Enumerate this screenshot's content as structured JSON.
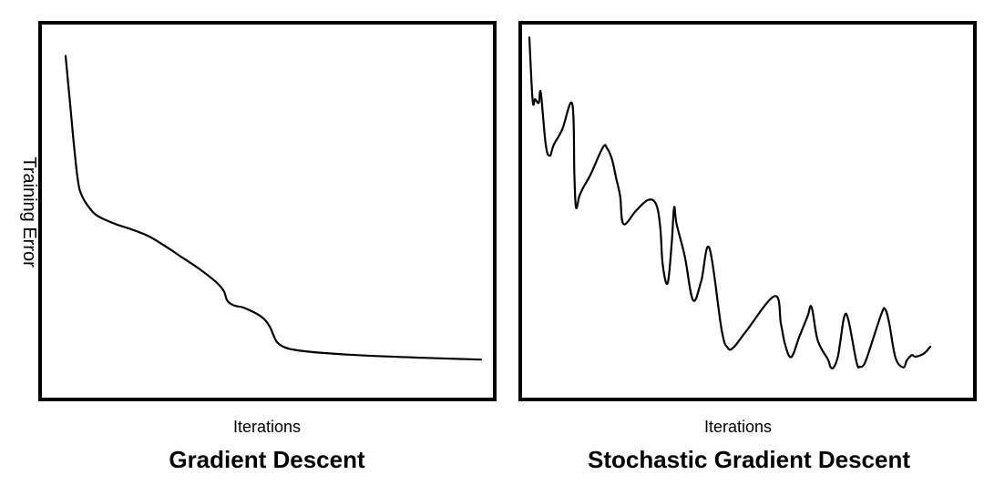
{
  "chart_data": [
    {
      "type": "line",
      "title": "Gradient Descent",
      "xlabel": "Iterations",
      "ylabel": "Training Error",
      "grid": false,
      "xlim": [
        0,
        100
      ],
      "ylim": [
        0,
        100
      ],
      "series": [
        {
          "x": [
            0,
            1,
            2,
            3,
            4,
            6,
            8,
            12,
            16,
            20,
            24,
            28,
            32,
            36,
            38,
            38.8,
            39.6,
            41,
            43,
            47,
            49,
            50,
            51,
            53,
            56,
            62,
            72,
            86,
            100
          ],
          "y": [
            92,
            80,
            68,
            58,
            54,
            50.5,
            48.5,
            46.5,
            45,
            43.2,
            40.5,
            37.5,
            34.5,
            31,
            28.5,
            26,
            25,
            24.3,
            23.8,
            21.5,
            19,
            16.5,
            14.4,
            13,
            12.3,
            11.6,
            10.9,
            10.3,
            9.8
          ]
        }
      ]
    },
    {
      "type": "line",
      "title": "Stochastic Gradient Descent",
      "xlabel": "Iterations",
      "ylabel": "",
      "grid": false,
      "xlim": [
        0,
        100
      ],
      "ylim": [
        0,
        100
      ],
      "series": [
        {
          "x": [
            0,
            0.8,
            1.4,
            2.3,
            2.8,
            4,
            5,
            6,
            8,
            10.5,
            11,
            11.4,
            12.2,
            13,
            15,
            18,
            19,
            20.2,
            21.2,
            22.2,
            23,
            26,
            29,
            31,
            32,
            32.6,
            33.8,
            34.8,
            35.4,
            36,
            38,
            40,
            42,
            44,
            47,
            48.5,
            50,
            53,
            60,
            61.5,
            62.5,
            64,
            66,
            68,
            69,
            70.5,
            73,
            73.6,
            74.4,
            75.4,
            76,
            77,
            78,
            80,
            80.8,
            81.6,
            82.6,
            86,
            87,
            88,
            89.5,
            91.4,
            92.3,
            93.5,
            94.4,
            96.5,
            98
          ],
          "y": [
            97,
            80,
            80.3,
            79.3,
            82,
            68,
            65,
            68,
            72,
            79,
            60,
            51,
            54,
            56,
            60,
            67.3,
            67,
            64,
            59,
            54,
            46.5,
            50,
            53,
            51.8,
            45.5,
            35.5,
            30.5,
            41.5,
            51,
            46.5,
            37.7,
            25.9,
            31,
            40,
            17.9,
            13,
            13.2,
            17.5,
            27,
            19.5,
            14,
            10.5,
            16,
            21.5,
            24,
            15,
            9.8,
            7.8,
            7.7,
            10.5,
            14.5,
            21.5,
            20.5,
            9,
            7.9,
            8.2,
            10.6,
            22,
            23.4,
            19.5,
            10.3,
            7.7,
            9.6,
            11,
            10.6,
            11.5,
            13.3
          ]
        }
      ]
    }
  ]
}
